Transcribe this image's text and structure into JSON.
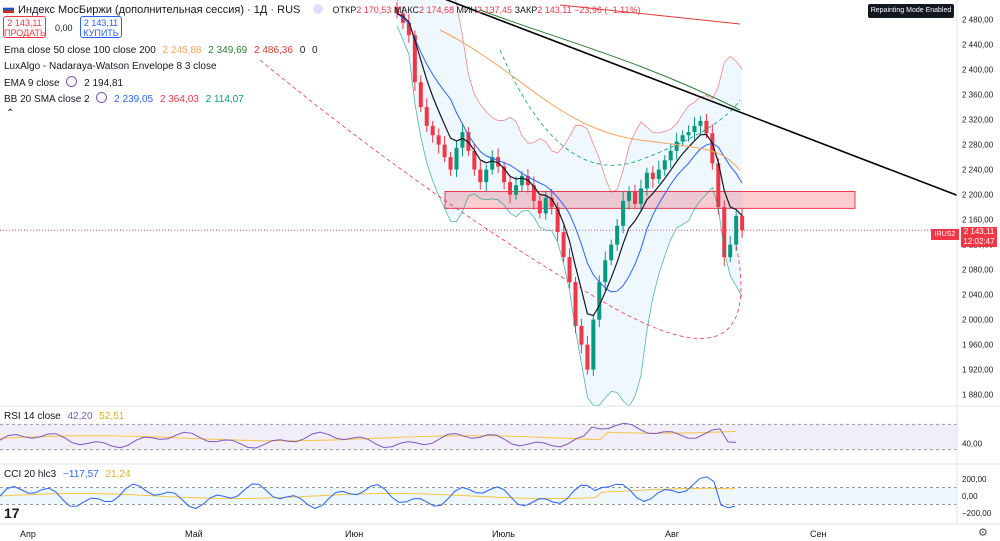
{
  "header": {
    "title": "Индекс МосБиржи (дополнительная сессия) · 1Д · RUS",
    "ohlc": [
      {
        "label": "ОТКР",
        "value": "2 170,53"
      },
      {
        "label": "МАКС",
        "value": "2 174,68"
      },
      {
        "label": "МИН",
        "value": "2 137,45"
      },
      {
        "label": "ЗАКР",
        "value": "2 143,11"
      },
      {
        "label": "",
        "value": "−23,96 (−1,11%)"
      }
    ],
    "sell": {
      "price": "2 143,11",
      "label": "ПРОДАТЬ"
    },
    "spread": "0,00",
    "buy": {
      "price": "2 143,11",
      "label": "КУПИТЬ"
    },
    "badge": "Repainting Mode Enabled"
  },
  "indicators": {
    "ema": {
      "label": "Ema close 50 close 100 close 200",
      "v1": "2 245,88",
      "v2": "2 349,69",
      "v3": "2 486,36",
      "v4": "0",
      "v5": "0"
    },
    "lux": {
      "label": "LuxAlgo - Nadaraya-Watson Envelope 8 3 close"
    },
    "ema9": {
      "label": "EMA 9 close",
      "value": "2 194,81"
    },
    "bb": {
      "label": "BB 20 SMA close 2",
      "v1": "2 239,05",
      "v2": "2 364,03",
      "v3": "2 114,07"
    },
    "rsi": {
      "label": "RSI 14 close",
      "v1": "42,20",
      "v2": "52,51"
    },
    "cci": {
      "label": "CCI 20 hlc3",
      "v1": "−117,57",
      "v2": "21,24"
    }
  },
  "price_tag": {
    "symbol": "IRUS2",
    "value": "2 143,11",
    "time": "12:02:47"
  },
  "colors": {
    "up": "#089981",
    "down": "#f23645",
    "ema50": "#f7a35c",
    "ema100": "#2e7d32",
    "ema200": "#e53935",
    "bb_basis": "#2962ff",
    "ema9": "#131722",
    "rsi": "#7e57c2",
    "rsi_ma": "#f5c542",
    "cci": "#2962ff",
    "cci_ma": "#f5c542"
  },
  "chart_data": {
    "type": "candlestick",
    "y_ticks": [
      "2 480,00",
      "2 440,00",
      "2 400,00",
      "2 360,00",
      "2 320,00",
      "2 280,00",
      "2 240,00",
      "2 200,00",
      "2 160,00",
      "2 120,00",
      "2 080,00",
      "2 040,00",
      "2 000,00",
      "1 960,00",
      "1 920,00",
      "1 880,00"
    ],
    "y_tick_values": [
      2480,
      2440,
      2400,
      2360,
      2320,
      2280,
      2240,
      2200,
      2160,
      2120,
      2080,
      2040,
      2000,
      1960,
      1920,
      1880
    ],
    "ylim": [
      1865,
      2505
    ],
    "x_ticks": [
      "Апр",
      "Май",
      "Июн",
      "Июль",
      "Авг",
      "Сен"
    ],
    "resistance_zone": [
      2178,
      2205
    ],
    "trendline": [
      {
        "x": "2024-06-17",
        "y": 2522
      },
      {
        "x": "2024-08-28",
        "y": 2215
      }
    ],
    "last_close": 2143.11,
    "candles_close": [
      2490,
      2475,
      2455,
      2380,
      2340,
      2310,
      2295,
      2280,
      2260,
      2240,
      2275,
      2300,
      2270,
      2240,
      2220,
      2240,
      2260,
      2245,
      2220,
      2200,
      2215,
      2230,
      2215,
      2190,
      2170,
      2195,
      2180,
      2140,
      2100,
      2060,
      1990,
      1960,
      1920,
      2000,
      2060,
      2095,
      2120,
      2150,
      2190,
      2205,
      2185,
      2210,
      2235,
      2225,
      2240,
      2255,
      2270,
      2285,
      2295,
      2300,
      2310,
      2318,
      2298,
      2250,
      2180,
      2100,
      2120,
      2166,
      2143
    ],
    "rsi": {
      "ticks": [
        "40,00"
      ],
      "tick_values": [
        40
      ],
      "upper": 70,
      "lower": 30,
      "ylim": [
        20,
        80
      ]
    },
    "cci": {
      "ticks": [
        "200,00",
        "0,00",
        "−200,00"
      ],
      "tick_values": [
        200,
        0,
        -200
      ],
      "upper": 100,
      "lower": -100,
      "ylim": [
        -260,
        260
      ]
    }
  }
}
